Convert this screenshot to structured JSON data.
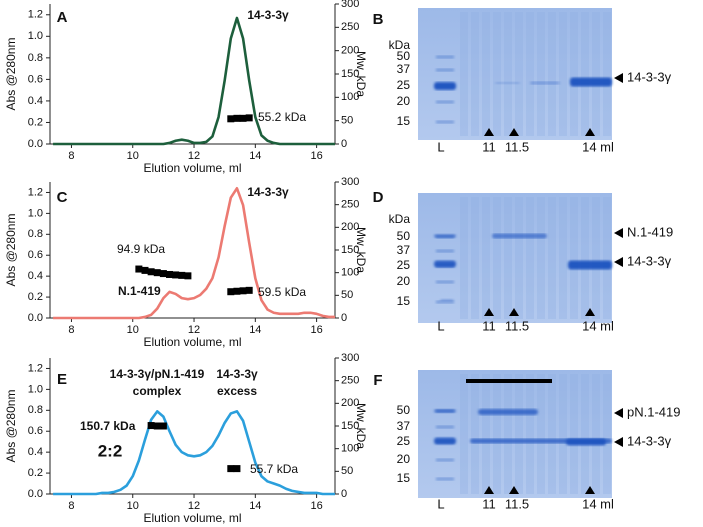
{
  "chart_data": [
    {
      "type": "line",
      "panel": "A",
      "x_label": "Elution volume, ml",
      "y_label": "Abs @280nm",
      "y2_label": "Mw, kDa",
      "x": [
        7.4,
        7.6,
        7.8,
        8,
        8.2,
        8.4,
        8.6,
        8.8,
        9,
        9.2,
        9.4,
        9.6,
        9.8,
        10,
        10.2,
        10.4,
        10.6,
        10.8,
        11,
        11.2,
        11.4,
        11.6,
        11.8,
        12,
        12.2,
        12.4,
        12.6,
        12.8,
        13,
        13.2,
        13.4,
        13.6,
        13.8,
        14,
        14.2,
        14.4,
        14.6,
        14.8,
        15,
        15.2,
        15.4,
        15.6,
        15.8,
        16,
        16.2,
        16.4,
        16.6
      ],
      "series": [
        {
          "color": "#1d5f3c",
          "values": [
            0,
            0,
            0,
            0,
            0,
            0,
            0,
            0,
            0,
            0,
            0,
            0,
            0,
            0,
            0,
            0,
            0,
            0,
            0,
            0.01,
            0.03,
            0.04,
            0.03,
            0.01,
            0.01,
            0.02,
            0.07,
            0.25,
            0.59,
            0.98,
            1.17,
            0.98,
            0.59,
            0.25,
            0.08,
            0.03,
            0.01,
            0,
            0,
            0,
            0,
            0,
            0,
            0,
            0,
            0,
            0
          ]
        },
        {
          "axis": "y2",
          "color": "#000000",
          "values": [
            null,
            null,
            null,
            null,
            null,
            null,
            null,
            null,
            null,
            null,
            null,
            null,
            null,
            null,
            null,
            null,
            null,
            null,
            null,
            null,
            null,
            null,
            null,
            null,
            null,
            null,
            null,
            null,
            null,
            54,
            55,
            55,
            56,
            null,
            null,
            null,
            null,
            null,
            null,
            null,
            null,
            null,
            null,
            null,
            null,
            null,
            null
          ]
        }
      ],
      "annotations": [
        "14-3-3γ",
        "55.2 kDa"
      ],
      "xlim": [
        7.3,
        16.6
      ],
      "xticks": [
        8,
        10,
        12,
        14,
        16
      ],
      "ylim": [
        0,
        1.3
      ],
      "yticks": [
        {
          "value": 0,
          "label": "0.0"
        },
        {
          "value": 0.2,
          "label": "0.2"
        },
        {
          "value": 0.4,
          "label": "0.4"
        },
        {
          "value": 0.6,
          "label": "0.6"
        },
        {
          "value": 0.8,
          "label": "0.8"
        },
        {
          "value": 1,
          "label": "1.0"
        },
        {
          "value": 1.2,
          "label": "1.2"
        }
      ],
      "y2lim": [
        0,
        300
      ],
      "y2ticks": [
        0,
        50,
        100,
        150,
        200,
        250,
        300
      ]
    },
    {
      "type": "line",
      "panel": "C",
      "x_label": "Elution volume, ml",
      "y_label": "Abs @280nm",
      "y2_label": "Mw, kDa",
      "x": [
        7.4,
        7.6,
        7.8,
        8,
        8.2,
        8.4,
        8.6,
        8.8,
        9,
        9.2,
        9.4,
        9.6,
        9.8,
        10,
        10.2,
        10.4,
        10.6,
        10.8,
        11,
        11.2,
        11.4,
        11.6,
        11.8,
        12,
        12.2,
        12.4,
        12.6,
        12.8,
        13,
        13.2,
        13.4,
        13.6,
        13.8,
        14,
        14.2,
        14.4,
        14.6,
        14.8,
        15,
        15.2,
        15.4,
        15.6,
        15.8,
        16,
        16.2,
        16.4,
        16.6
      ],
      "series": [
        {
          "color": "#ec7a72",
          "values": [
            0,
            0,
            0,
            0,
            0,
            0,
            0,
            0,
            0,
            0,
            0,
            0,
            0,
            0,
            0,
            0.01,
            0.03,
            0.09,
            0.19,
            0.25,
            0.23,
            0.19,
            0.18,
            0.19,
            0.22,
            0.28,
            0.38,
            0.58,
            0.88,
            1.15,
            1.24,
            1.08,
            0.72,
            0.38,
            0.17,
            0.08,
            0.05,
            0.04,
            0.04,
            0.04,
            0.04,
            0.05,
            0.05,
            0.04,
            0.02,
            0.01,
            0.01
          ]
        },
        {
          "axis": "y2",
          "color": "#000000",
          "values": [
            null,
            null,
            null,
            null,
            null,
            null,
            null,
            null,
            null,
            null,
            null,
            null,
            null,
            null,
            108,
            105,
            102,
            100,
            98,
            96,
            95,
            94,
            93,
            null,
            null,
            null,
            null,
            null,
            null,
            58,
            59,
            60,
            61,
            null,
            null,
            null,
            null,
            null,
            null,
            null,
            null,
            null,
            null,
            null,
            null,
            null,
            null
          ]
        }
      ],
      "annotations": [
        "14-3-3γ",
        "94.9 kDa",
        "N.1-419",
        "59.5 kDa"
      ],
      "xlim": [
        7.3,
        16.6
      ],
      "xticks": [
        8,
        10,
        12,
        14,
        16
      ],
      "ylim": [
        0,
        1.3
      ],
      "yticks": [
        {
          "value": 0,
          "label": "0.0"
        },
        {
          "value": 0.2,
          "label": "0.2"
        },
        {
          "value": 0.4,
          "label": "0.4"
        },
        {
          "value": 0.6,
          "label": "0.6"
        },
        {
          "value": 0.8,
          "label": "0.8"
        },
        {
          "value": 1,
          "label": "1.0"
        },
        {
          "value": 1.2,
          "label": "1.2"
        }
      ],
      "y2lim": [
        0,
        300
      ],
      "y2ticks": [
        0,
        50,
        100,
        150,
        200,
        250,
        300
      ]
    },
    {
      "type": "line",
      "panel": "E",
      "x_label": "Elution volume, ml",
      "y_label": "Abs @280nm",
      "y2_label": "Mw, kDa",
      "x": [
        7.4,
        7.6,
        7.8,
        8,
        8.2,
        8.4,
        8.6,
        8.8,
        9,
        9.2,
        9.4,
        9.6,
        9.8,
        10,
        10.2,
        10.4,
        10.6,
        10.8,
        11,
        11.2,
        11.4,
        11.6,
        11.8,
        12,
        12.2,
        12.4,
        12.6,
        12.8,
        13,
        13.2,
        13.4,
        13.6,
        13.8,
        14,
        14.2,
        14.4,
        14.6,
        14.8,
        15,
        15.2,
        15.4,
        15.6,
        15.8,
        16,
        16.2,
        16.4,
        16.6
      ],
      "series": [
        {
          "color": "#2b9fdc",
          "values": [
            0,
            0,
            0,
            0,
            0,
            0,
            0,
            0,
            0.01,
            0.01,
            0.02,
            0.04,
            0.08,
            0.17,
            0.32,
            0.52,
            0.71,
            0.79,
            0.74,
            0.6,
            0.47,
            0.4,
            0.37,
            0.36,
            0.37,
            0.4,
            0.46,
            0.56,
            0.68,
            0.77,
            0.79,
            0.7,
            0.5,
            0.3,
            0.17,
            0.12,
            0.1,
            0.08,
            0.05,
            0.03,
            0.02,
            0.01,
            0.01,
            0.01,
            0,
            0,
            0
          ]
        },
        {
          "axis": "y2",
          "color": "#000000",
          "values": [
            null,
            null,
            null,
            null,
            null,
            null,
            null,
            null,
            null,
            null,
            null,
            null,
            null,
            null,
            null,
            null,
            151,
            150,
            150,
            null,
            null,
            null,
            null,
            null,
            null,
            null,
            null,
            null,
            null,
            56,
            56,
            null,
            null,
            null,
            null,
            null,
            null,
            null,
            null,
            null,
            null,
            null,
            null,
            null,
            null,
            null,
            null
          ]
        }
      ],
      "annotations": [
        "14-3-3γ/pN.1-419",
        "complex",
        "14-3-3γ",
        "excess",
        "150.7 kDa",
        "2:2",
        "55.7 kDa"
      ],
      "xlim": [
        7.3,
        16.6
      ],
      "xticks": [
        8,
        10,
        12,
        14,
        16
      ],
      "ylim": [
        0,
        1.3
      ],
      "yticks": [
        {
          "value": 0,
          "label": "0.0"
        },
        {
          "value": 0.2,
          "label": "0.2"
        },
        {
          "value": 0.4,
          "label": "0.4"
        },
        {
          "value": 0.6,
          "label": "0.6"
        },
        {
          "value": 0.8,
          "label": "0.8"
        },
        {
          "value": 1,
          "label": "1.0"
        },
        {
          "value": 1.2,
          "label": "1.2"
        }
      ],
      "y2lim": [
        0,
        300
      ],
      "y2ticks": [
        0,
        50,
        100,
        150,
        200,
        250,
        300
      ]
    }
  ],
  "gels": [
    {
      "panel": "B",
      "unit": "kDa",
      "markers": [
        50,
        37,
        25,
        20,
        15
      ],
      "lanes": [
        "L",
        "11",
        "11.5",
        "14 ml"
      ],
      "bands": [
        "14-3-3γ"
      ]
    },
    {
      "panel": "D",
      "unit": "kDa",
      "markers": [
        50,
        37,
        25,
        20,
        15
      ],
      "lanes": [
        "L",
        "11",
        "11.5",
        "14 ml"
      ],
      "bands": [
        "N.1-419",
        "14-3-3γ"
      ]
    },
    {
      "panel": "F",
      "markers": [
        50,
        37,
        25,
        20,
        15
      ],
      "lanes": [
        "L",
        "11",
        "11.5",
        "14 ml"
      ],
      "bands": [
        "pN.1-419",
        "14-3-3γ"
      ]
    }
  ]
}
